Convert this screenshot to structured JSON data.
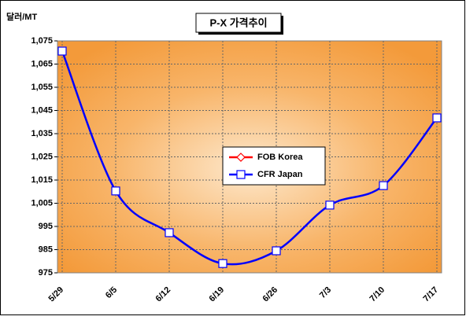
{
  "chart_data": {
    "type": "line",
    "title": "P-X 가격추이",
    "y_label": "달러/MT",
    "categories": [
      "5/29",
      "6/5",
      "6/12",
      "6/19",
      "6/26",
      "7/3",
      "7/10",
      "7/17"
    ],
    "series": [
      {
        "name": "FOB Korea",
        "color": "#ff0000",
        "marker": "diamond",
        "values": [
          null,
          null,
          null,
          null,
          null,
          null,
          null,
          null
        ]
      },
      {
        "name": "CFR Japan",
        "color": "#0000ff",
        "marker": "square",
        "values": [
          1070.6,
          1010.3,
          992.3,
          979,
          984.5,
          1004.2,
          1012.6,
          1041.8
        ]
      }
    ],
    "ylim": [
      975,
      1075
    ],
    "yticks": [
      975,
      985,
      995,
      {
        "value": 1005,
        "label": "1,005"
      },
      {
        "value": 1015,
        "label": "1,015"
      },
      {
        "value": 1025,
        "label": "1,025"
      },
      {
        "value": 1035,
        "label": "1,035"
      },
      {
        "value": 1045,
        "label": "1,045"
      },
      {
        "value": 1055,
        "label": "1,055"
      },
      {
        "value": 1065,
        "label": "1,065"
      },
      {
        "value": 1075,
        "label": "1,075"
      }
    ],
    "grid": true,
    "legend": "center"
  }
}
